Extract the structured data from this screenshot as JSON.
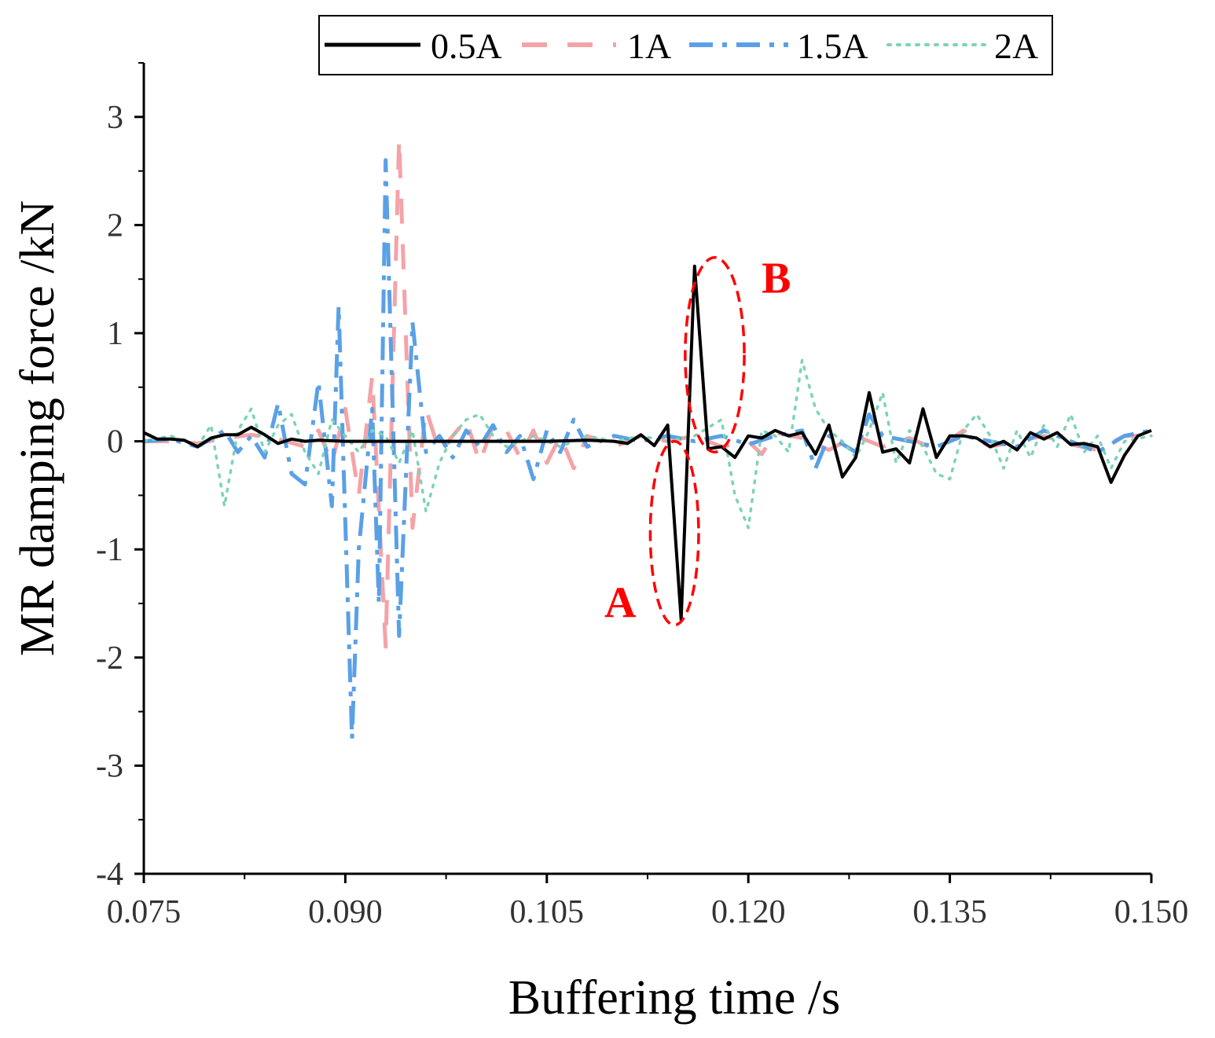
{
  "chart_data": {
    "type": "line",
    "title": "",
    "xlabel": "Buffering time /s",
    "ylabel": "MR damping force /kN",
    "xlim": [
      0.075,
      0.15
    ],
    "ylim": [
      -4,
      3.5
    ],
    "xticks": [
      0.075,
      0.09,
      0.105,
      0.12,
      0.135,
      0.15
    ],
    "xtick_labels": [
      "0.075",
      "0.090",
      "0.105",
      "0.120",
      "0.135",
      "0.150"
    ],
    "yticks": [
      -4,
      -3,
      -2,
      -1,
      0,
      1,
      2,
      3
    ],
    "ytick_labels": [
      "-4",
      "-3",
      "-2",
      "-1",
      "0",
      "1",
      "2",
      "3"
    ],
    "grid": false,
    "legend_position": "top",
    "series": [
      {
        "name": "0.5A",
        "color": "#000000",
        "style": "solid",
        "points": [
          [
            0.075,
            0.08
          ],
          [
            0.076,
            0.02
          ],
          [
            0.077,
            0.02
          ],
          [
            0.078,
            0.01
          ],
          [
            0.079,
            -0.05
          ],
          [
            0.08,
            0.03
          ],
          [
            0.081,
            0.06
          ],
          [
            0.082,
            0.06
          ],
          [
            0.083,
            0.13
          ],
          [
            0.084,
            0.06
          ],
          [
            0.085,
            -0.02
          ],
          [
            0.086,
            0.02
          ],
          [
            0.087,
            0.0
          ],
          [
            0.088,
            0.01
          ],
          [
            0.09,
            0.0
          ],
          [
            0.095,
            0.0
          ],
          [
            0.1,
            0.0
          ],
          [
            0.105,
            0.0
          ],
          [
            0.108,
            0.01
          ],
          [
            0.11,
            0.0
          ],
          [
            0.111,
            -0.02
          ],
          [
            0.112,
            0.06
          ],
          [
            0.113,
            -0.04
          ],
          [
            0.114,
            0.15
          ],
          [
            0.115,
            -1.65
          ],
          [
            0.116,
            1.62
          ],
          [
            0.117,
            -0.07
          ],
          [
            0.118,
            -0.05
          ],
          [
            0.119,
            -0.15
          ],
          [
            0.12,
            0.05
          ],
          [
            0.121,
            0.03
          ],
          [
            0.122,
            0.1
          ],
          [
            0.123,
            0.05
          ],
          [
            0.124,
            0.08
          ],
          [
            0.125,
            -0.12
          ],
          [
            0.126,
            0.15
          ],
          [
            0.127,
            -0.33
          ],
          [
            0.128,
            -0.15
          ],
          [
            0.129,
            0.45
          ],
          [
            0.13,
            -0.1
          ],
          [
            0.131,
            -0.07
          ],
          [
            0.132,
            -0.2
          ],
          [
            0.133,
            0.3
          ],
          [
            0.134,
            -0.15
          ],
          [
            0.135,
            0.05
          ],
          [
            0.136,
            0.05
          ],
          [
            0.137,
            0.03
          ],
          [
            0.138,
            -0.05
          ],
          [
            0.139,
            0.0
          ],
          [
            0.14,
            -0.08
          ],
          [
            0.141,
            0.08
          ],
          [
            0.142,
            0.02
          ],
          [
            0.143,
            0.08
          ],
          [
            0.144,
            -0.03
          ],
          [
            0.145,
            -0.02
          ],
          [
            0.146,
            -0.05
          ],
          [
            0.147,
            -0.38
          ],
          [
            0.148,
            -0.13
          ],
          [
            0.149,
            0.05
          ],
          [
            0.15,
            0.1
          ]
        ]
      },
      {
        "name": "1A",
        "color": "#f4a3a8",
        "style": "dashed",
        "points": [
          [
            0.075,
            0.0
          ],
          [
            0.077,
            0.0
          ],
          [
            0.079,
            -0.02
          ],
          [
            0.081,
            0.03
          ],
          [
            0.083,
            0.06
          ],
          [
            0.085,
            0.02
          ],
          [
            0.087,
            -0.05
          ],
          [
            0.088,
            0.1
          ],
          [
            0.089,
            -0.2
          ],
          [
            0.09,
            0.3
          ],
          [
            0.091,
            -0.5
          ],
          [
            0.092,
            0.6
          ],
          [
            0.093,
            -1.9
          ],
          [
            0.094,
            2.8
          ],
          [
            0.095,
            -0.8
          ],
          [
            0.096,
            0.3
          ],
          [
            0.097,
            -0.1
          ],
          [
            0.098,
            0.05
          ],
          [
            0.099,
            0.2
          ],
          [
            0.1,
            -0.2
          ],
          [
            0.101,
            0.15
          ],
          [
            0.102,
            0.1
          ],
          [
            0.103,
            -0.15
          ],
          [
            0.104,
            0.1
          ],
          [
            0.105,
            -0.2
          ],
          [
            0.106,
            0.05
          ],
          [
            0.107,
            -0.25
          ],
          [
            0.108,
            0.05
          ],
          [
            0.109,
            0.0
          ],
          [
            0.11,
            -0.05
          ],
          [
            0.112,
            0.05
          ],
          [
            0.114,
            0.0
          ],
          [
            0.116,
            0.05
          ],
          [
            0.118,
            -0.05
          ],
          [
            0.12,
            0.0
          ],
          [
            0.121,
            -0.12
          ],
          [
            0.122,
            0.08
          ],
          [
            0.124,
            0.03
          ],
          [
            0.126,
            -0.08
          ],
          [
            0.128,
            0.05
          ],
          [
            0.13,
            -0.05
          ],
          [
            0.132,
            0.03
          ],
          [
            0.134,
            -0.08
          ],
          [
            0.136,
            0.1
          ],
          [
            0.138,
            -0.05
          ],
          [
            0.14,
            0.0
          ],
          [
            0.142,
            0.05
          ],
          [
            0.144,
            -0.03
          ],
          [
            0.146,
            -0.08
          ],
          [
            0.148,
            0.05
          ],
          [
            0.15,
            0.05
          ]
        ]
      },
      {
        "name": "1.5A",
        "color": "#5aa0e6",
        "style": "dashdot",
        "points": [
          [
            0.075,
            0.0
          ],
          [
            0.077,
            0.02
          ],
          [
            0.079,
            -0.05
          ],
          [
            0.081,
            0.1
          ],
          [
            0.082,
            -0.1
          ],
          [
            0.083,
            0.05
          ],
          [
            0.084,
            -0.15
          ],
          [
            0.085,
            0.35
          ],
          [
            0.086,
            -0.3
          ],
          [
            0.087,
            -0.4
          ],
          [
            0.088,
            0.55
          ],
          [
            0.089,
            -0.6
          ],
          [
            0.0895,
            1.25
          ],
          [
            0.0905,
            -2.75
          ],
          [
            0.091,
            -1.0
          ],
          [
            0.092,
            0.3
          ],
          [
            0.0925,
            -1.5
          ],
          [
            0.093,
            2.6
          ],
          [
            0.094,
            -1.8
          ],
          [
            0.095,
            1.1
          ],
          [
            0.096,
            -0.1
          ],
          [
            0.097,
            0.05
          ],
          [
            0.098,
            -0.15
          ],
          [
            0.099,
            0.1
          ],
          [
            0.1,
            -0.05
          ],
          [
            0.101,
            0.15
          ],
          [
            0.102,
            -0.1
          ],
          [
            0.103,
            0.05
          ],
          [
            0.104,
            -0.35
          ],
          [
            0.105,
            0.1
          ],
          [
            0.106,
            -0.1
          ],
          [
            0.107,
            0.2
          ],
          [
            0.108,
            -0.05
          ],
          [
            0.11,
            0.05
          ],
          [
            0.112,
            0.0
          ],
          [
            0.114,
            0.05
          ],
          [
            0.116,
            0.0
          ],
          [
            0.118,
            0.05
          ],
          [
            0.12,
            -0.03
          ],
          [
            0.122,
            0.05
          ],
          [
            0.124,
            0.1
          ],
          [
            0.125,
            -0.25
          ],
          [
            0.126,
            0.05
          ],
          [
            0.128,
            -0.1
          ],
          [
            0.129,
            0.25
          ],
          [
            0.13,
            0.05
          ],
          [
            0.132,
            0.0
          ],
          [
            0.134,
            -0.05
          ],
          [
            0.136,
            0.05
          ],
          [
            0.138,
            0.0
          ],
          [
            0.14,
            -0.05
          ],
          [
            0.142,
            0.1
          ],
          [
            0.144,
            0.0
          ],
          [
            0.146,
            -0.1
          ],
          [
            0.148,
            0.05
          ],
          [
            0.15,
            0.1
          ]
        ]
      },
      {
        "name": "2A",
        "color": "#7ed3b7",
        "style": "dotted",
        "points": [
          [
            0.075,
            0.0
          ],
          [
            0.077,
            0.05
          ],
          [
            0.079,
            -0.05
          ],
          [
            0.08,
            0.15
          ],
          [
            0.081,
            -0.6
          ],
          [
            0.082,
            0.1
          ],
          [
            0.083,
            0.3
          ],
          [
            0.084,
            -0.1
          ],
          [
            0.085,
            0.15
          ],
          [
            0.086,
            0.25
          ],
          [
            0.087,
            -0.1
          ],
          [
            0.088,
            -0.3
          ],
          [
            0.089,
            0.2
          ],
          [
            0.09,
            0.05
          ],
          [
            0.091,
            -0.1
          ],
          [
            0.092,
            0.1
          ],
          [
            0.093,
            0.05
          ],
          [
            0.094,
            -0.2
          ],
          [
            0.095,
            0.1
          ],
          [
            0.096,
            -0.65
          ],
          [
            0.097,
            -0.2
          ],
          [
            0.098,
            0.05
          ],
          [
            0.099,
            0.2
          ],
          [
            0.1,
            0.25
          ],
          [
            0.101,
            0.05
          ],
          [
            0.102,
            -0.05
          ],
          [
            0.104,
            0.05
          ],
          [
            0.106,
            -0.05
          ],
          [
            0.108,
            0.05
          ],
          [
            0.11,
            0.0
          ],
          [
            0.112,
            0.05
          ],
          [
            0.114,
            0.0
          ],
          [
            0.116,
            0.05
          ],
          [
            0.118,
            0.2
          ],
          [
            0.119,
            -0.5
          ],
          [
            0.12,
            -0.8
          ],
          [
            0.121,
            0.1
          ],
          [
            0.122,
            0.05
          ],
          [
            0.123,
            -0.1
          ],
          [
            0.124,
            0.75
          ],
          [
            0.125,
            0.3
          ],
          [
            0.126,
            0.1
          ],
          [
            0.127,
            0.0
          ],
          [
            0.128,
            -0.15
          ],
          [
            0.129,
            0.1
          ],
          [
            0.13,
            0.45
          ],
          [
            0.131,
            -0.2
          ],
          [
            0.132,
            0.1
          ],
          [
            0.133,
            -0.05
          ],
          [
            0.134,
            -0.3
          ],
          [
            0.135,
            -0.35
          ],
          [
            0.136,
            0.1
          ],
          [
            0.137,
            0.25
          ],
          [
            0.138,
            0.05
          ],
          [
            0.139,
            -0.25
          ],
          [
            0.14,
            0.1
          ],
          [
            0.141,
            -0.15
          ],
          [
            0.142,
            0.15
          ],
          [
            0.143,
            -0.05
          ],
          [
            0.144,
            0.25
          ],
          [
            0.145,
            -0.1
          ],
          [
            0.146,
            0.05
          ],
          [
            0.147,
            -0.25
          ],
          [
            0.148,
            0.0
          ],
          [
            0.15,
            0.05
          ]
        ]
      }
    ],
    "annotations": [
      {
        "label": "A",
        "center": [
          0.1145,
          -0.85
        ],
        "half_width": 0.0018,
        "half_height": 0.85
      },
      {
        "label": "B",
        "center": [
          0.1175,
          0.8
        ],
        "half_width": 0.0022,
        "half_height": 0.9
      }
    ]
  }
}
